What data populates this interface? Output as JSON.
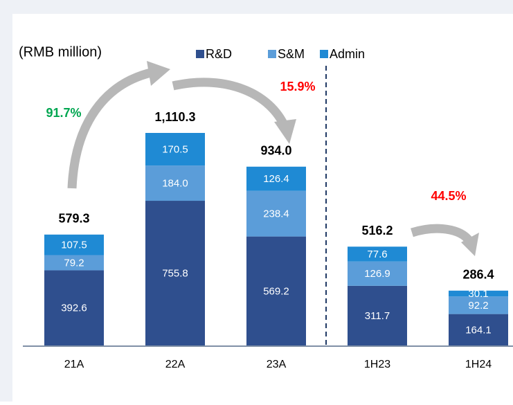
{
  "chart_data": {
    "type": "bar",
    "stacked": true,
    "unit_label": "(RMB million)",
    "categories": [
      "21A",
      "22A",
      "23A",
      "1H23",
      "1H24"
    ],
    "series": [
      {
        "name": "R&D",
        "color": "#2f4f8e",
        "values": [
          392.6,
          755.8,
          569.2,
          311.7,
          164.1
        ],
        "value_labels": [
          "392.6",
          "755.8",
          "569.2",
          "311.7",
          "164.1"
        ]
      },
      {
        "name": "S&M",
        "color": "#5b9dd9",
        "values": [
          79.2,
          184.0,
          238.4,
          126.9,
          92.2
        ],
        "value_labels": [
          "79.2",
          "184.0",
          "238.4",
          "126.9",
          "92.2"
        ]
      },
      {
        "name": "Admin",
        "color": "#1f8ad4",
        "values": [
          107.5,
          170.5,
          126.4,
          77.6,
          30.1
        ],
        "value_labels": [
          "107.5",
          "170.5",
          "126.4",
          "77.6",
          "30.1"
        ]
      }
    ],
    "totals": [
      579.3,
      1110.3,
      934.0,
      516.2,
      286.4
    ],
    "total_labels": [
      "579.3",
      "1,110.3",
      "934.0",
      "516.2",
      "286.4"
    ],
    "annotations": [
      {
        "text": "91.7%",
        "color": "#00a650"
      },
      {
        "text": "15.9%",
        "color": "#ff0000"
      },
      {
        "text": "44.5%",
        "color": "#ff0000"
      }
    ]
  }
}
